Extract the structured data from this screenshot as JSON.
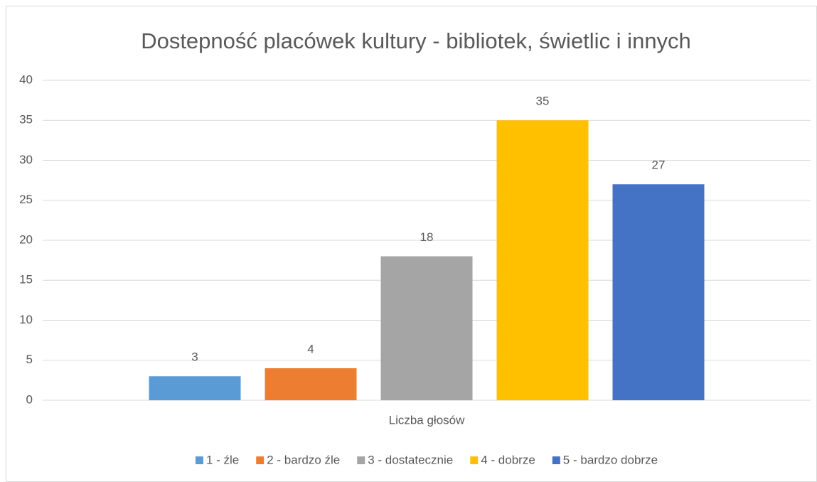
{
  "chart_data": {
    "type": "bar",
    "title": "Dostepność placówek kultury - bibliotek, świetlic i innych",
    "categories": [
      "Liczba głosów"
    ],
    "series": [
      {
        "name": "1 - źle",
        "color": "#5b9bd5",
        "values": [
          3
        ]
      },
      {
        "name": "2 - bardzo źle",
        "color": "#ed7d31",
        "values": [
          4
        ]
      },
      {
        "name": "3 - dostatecznie",
        "color": "#a5a5a5",
        "values": [
          18
        ]
      },
      {
        "name": "4 - dobrze",
        "color": "#ffc000",
        "values": [
          35
        ]
      },
      {
        "name": "5 - bardzo dobrze",
        "color": "#4472c4",
        "values": [
          27
        ]
      }
    ],
    "ylim": [
      0,
      40
    ],
    "yticks": [
      0,
      5,
      10,
      15,
      20,
      25,
      30,
      35,
      40
    ],
    "grid": true,
    "legend": "bottom"
  }
}
